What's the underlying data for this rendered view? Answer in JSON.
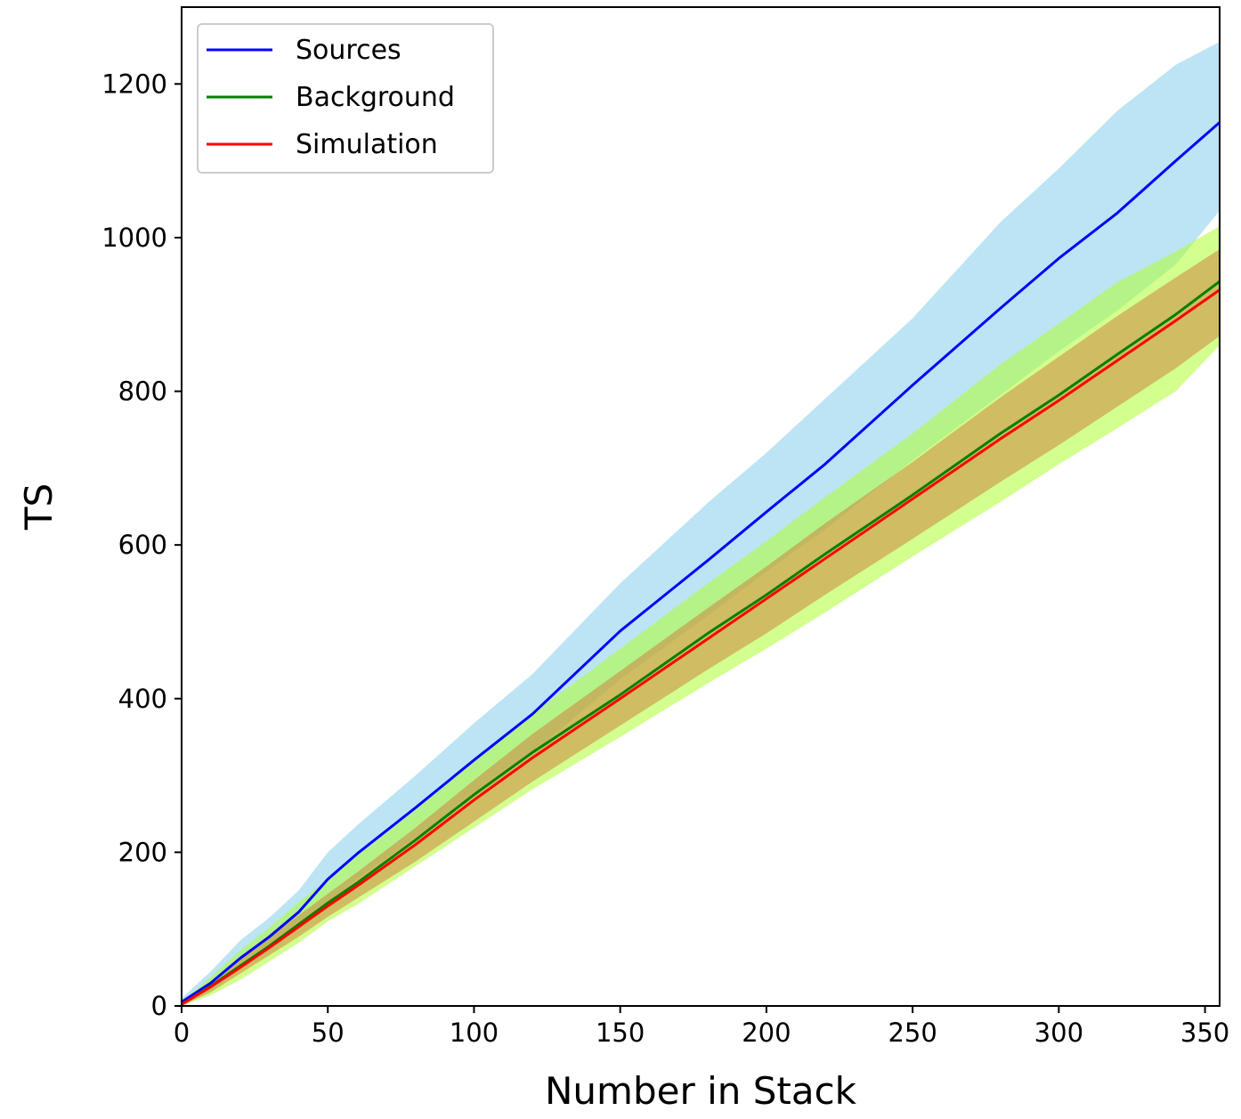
{
  "chart_data": {
    "type": "line",
    "title": "",
    "xlabel": "Number in Stack",
    "ylabel": "TS",
    "xlim": [
      0,
      355
    ],
    "ylim": [
      0,
      1300
    ],
    "xticks": [
      0,
      50,
      100,
      150,
      200,
      250,
      300,
      350
    ],
    "yticks": [
      0,
      200,
      400,
      600,
      800,
      1000,
      1200
    ],
    "grid": false,
    "legend_position": "upper-left",
    "x": [
      0,
      10,
      20,
      30,
      40,
      50,
      60,
      80,
      100,
      120,
      150,
      180,
      200,
      220,
      250,
      280,
      300,
      320,
      340,
      355
    ],
    "series": [
      {
        "name": "Sources",
        "color": "#0000ff",
        "band_color": "#87ceeb",
        "values": [
          5,
          30,
          62,
          90,
          122,
          165,
          198,
          258,
          320,
          380,
          488,
          580,
          643,
          705,
          808,
          908,
          973,
          1032,
          1100,
          1150
        ],
        "lower": [
          0,
          20,
          48,
          72,
          100,
          135,
          165,
          220,
          275,
          330,
          425,
          508,
          565,
          620,
          710,
          795,
          852,
          905,
          965,
          1035
        ],
        "upper": [
          10,
          45,
          85,
          115,
          150,
          200,
          235,
          300,
          368,
          432,
          550,
          655,
          720,
          790,
          895,
          1020,
          1090,
          1165,
          1225,
          1255
        ]
      },
      {
        "name": "Background",
        "color": "#008000",
        "band_color": "#adff2f",
        "values": [
          2,
          26,
          52,
          78,
          106,
          134,
          160,
          216,
          275,
          330,
          405,
          485,
          535,
          588,
          665,
          745,
          795,
          848,
          900,
          943
        ],
        "lower": [
          0,
          14,
          34,
          58,
          82,
          110,
          132,
          182,
          232,
          282,
          350,
          420,
          465,
          512,
          585,
          656,
          705,
          752,
          800,
          860
        ],
        "upper": [
          5,
          38,
          72,
          102,
          135,
          165,
          195,
          255,
          318,
          380,
          465,
          550,
          605,
          662,
          745,
          835,
          888,
          942,
          982,
          1015
        ]
      },
      {
        "name": "Simulation",
        "color": "#ff0000",
        "band_color": "#cd853f",
        "values": [
          2,
          25,
          50,
          76,
          103,
          130,
          156,
          210,
          268,
          323,
          400,
          478,
          530,
          582,
          660,
          738,
          788,
          840,
          892,
          932
        ],
        "lower": [
          0,
          18,
          42,
          66,
          90,
          116,
          140,
          188,
          240,
          292,
          365,
          438,
          485,
          535,
          608,
          682,
          730,
          780,
          830,
          872
        ],
        "upper": [
          4,
          32,
          62,
          90,
          118,
          146,
          174,
          232,
          294,
          354,
          436,
          518,
          572,
          628,
          708,
          792,
          845,
          898,
          948,
          985
        ]
      }
    ]
  }
}
